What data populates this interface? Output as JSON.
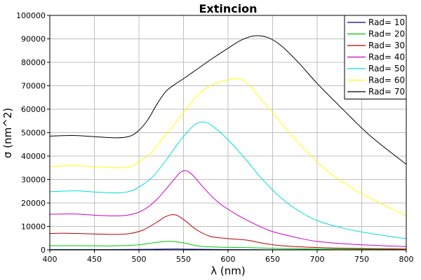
{
  "chart_data": {
    "type": "line",
    "title": "Extincion",
    "xlabel": "λ (nm)",
    "ylabel": "σ (nm^2)",
    "xlim": [
      400,
      800
    ],
    "ylim": [
      0,
      100000
    ],
    "xticks": [
      "400",
      "450",
      "500",
      "550",
      "600",
      "650",
      "700",
      "750",
      "800"
    ],
    "yticks": [
      "0",
      "10000",
      "20000",
      "30000",
      "40000",
      "50000",
      "60000",
      "70000",
      "80000",
      "90000",
      "100000"
    ],
    "grid": true,
    "legend_position": "top-right",
    "series": [
      {
        "name": "Rad= 10",
        "color": "#00008b",
        "x": [
          400,
          450,
          500,
          520,
          540,
          560,
          600,
          650,
          700,
          800
        ],
        "y": [
          150,
          150,
          200,
          300,
          400,
          300,
          150,
          80,
          50,
          30
        ]
      },
      {
        "name": "Rad= 20",
        "color": "#00c800",
        "x": [
          400,
          430,
          460,
          480,
          500,
          520,
          535,
          550,
          570,
          600,
          620,
          650,
          700,
          800
        ],
        "y": [
          1800,
          1800,
          1700,
          1800,
          2200,
          3200,
          3700,
          3000,
          1500,
          1100,
          1000,
          700,
          400,
          200
        ]
      },
      {
        "name": "Rad= 30",
        "color": "#b40000",
        "x": [
          400,
          420,
          450,
          475,
          490,
          505,
          520,
          530,
          540,
          550,
          565,
          580,
          600,
          620,
          640,
          660,
          700,
          750,
          800
        ],
        "y": [
          7000,
          7100,
          6800,
          6600,
          7000,
          8500,
          11800,
          14200,
          15000,
          13000,
          8500,
          5800,
          4800,
          4200,
          2800,
          1800,
          1000,
          600,
          400
        ]
      },
      {
        "name": "Rad= 40",
        "color": "#c800c8",
        "x": [
          400,
          430,
          450,
          475,
          490,
          505,
          520,
          535,
          545,
          552,
          560,
          575,
          590,
          610,
          630,
          650,
          680,
          700,
          730,
          760,
          800
        ],
        "y": [
          15200,
          15300,
          14800,
          14500,
          15000,
          17000,
          21500,
          28000,
          32500,
          33800,
          32000,
          25500,
          20000,
          15000,
          11000,
          7800,
          5000,
          3600,
          2600,
          2000,
          1400
        ]
      },
      {
        "name": "Rad= 50",
        "color": "#00dcdc",
        "x": [
          400,
          430,
          450,
          475,
          490,
          500,
          515,
          530,
          545,
          560,
          570,
          580,
          600,
          620,
          640,
          660,
          680,
          700,
          730,
          760,
          800
        ],
        "y": [
          24800,
          25200,
          24700,
          24300,
          25000,
          26800,
          31000,
          38000,
          46000,
          52500,
          54500,
          53500,
          47000,
          38500,
          29500,
          22000,
          16500,
          12500,
          9200,
          7000,
          4800
        ]
      },
      {
        "name": "Rad= 60",
        "color": "#ffff00",
        "x": [
          400,
          425,
          450,
          475,
          490,
          500,
          515,
          530,
          550,
          570,
          590,
          610,
          620,
          630,
          650,
          670,
          700,
          730,
          760,
          800
        ],
        "y": [
          35500,
          36000,
          35500,
          35000,
          35500,
          37500,
          42000,
          49000,
          58500,
          67500,
          71500,
          73000,
          71500,
          67500,
          58500,
          49500,
          37500,
          28500,
          22000,
          14500
        ]
      },
      {
        "name": "Rad= 70",
        "color": "#000000",
        "x": [
          400,
          425,
          450,
          475,
          490,
          500,
          510,
          520,
          530,
          540,
          550,
          565,
          580,
          600,
          615,
          630,
          645,
          660,
          680,
          700,
          730,
          760,
          800
        ],
        "y": [
          48500,
          48800,
          48300,
          47800,
          48500,
          51000,
          55500,
          62000,
          67500,
          70500,
          73000,
          77000,
          81000,
          86000,
          89500,
          91300,
          90500,
          87000,
          79500,
          71000,
          59500,
          48500,
          36500
        ]
      }
    ]
  }
}
